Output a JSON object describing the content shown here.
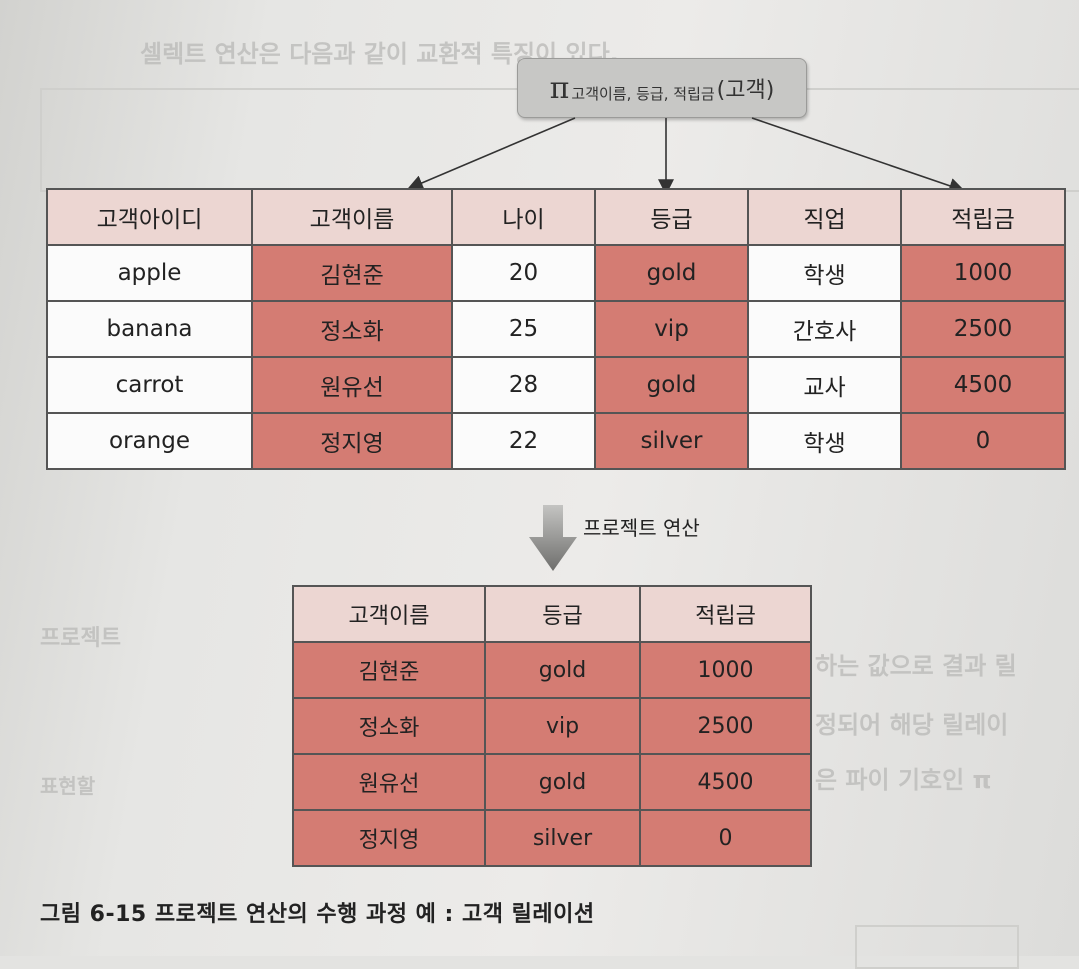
{
  "projection": {
    "symbol": "π",
    "attributes": "고객이름, 등급, 적립금",
    "relation": "(고객)"
  },
  "source_table": {
    "headers": [
      "고객아이디",
      "고객이름",
      "나이",
      "등급",
      "직업",
      "적립금"
    ],
    "rows": [
      [
        "apple",
        "김현준",
        "20",
        "gold",
        "학생",
        "1000"
      ],
      [
        "banana",
        "정소화",
        "25",
        "vip",
        "간호사",
        "2500"
      ],
      [
        "carrot",
        "원유선",
        "28",
        "gold",
        "교사",
        "4500"
      ],
      [
        "orange",
        "정지영",
        "22",
        "silver",
        "학생",
        "0"
      ]
    ]
  },
  "operation_label": "프로젝트 연산",
  "result_table": {
    "headers": [
      "고객이름",
      "등급",
      "적립금"
    ],
    "rows": [
      [
        "김현준",
        "gold",
        "1000"
      ],
      [
        "정소화",
        "vip",
        "2500"
      ],
      [
        "원유선",
        "gold",
        "4500"
      ],
      [
        "정지영",
        "silver",
        "0"
      ]
    ]
  },
  "caption": "그림 6-15  프로젝트 연산의 수행 과정 예 : 고객 릴레이션",
  "colors": {
    "highlight": "#d47c73",
    "header": "#ecd6d2",
    "projection_box": "#c7c7c5"
  }
}
